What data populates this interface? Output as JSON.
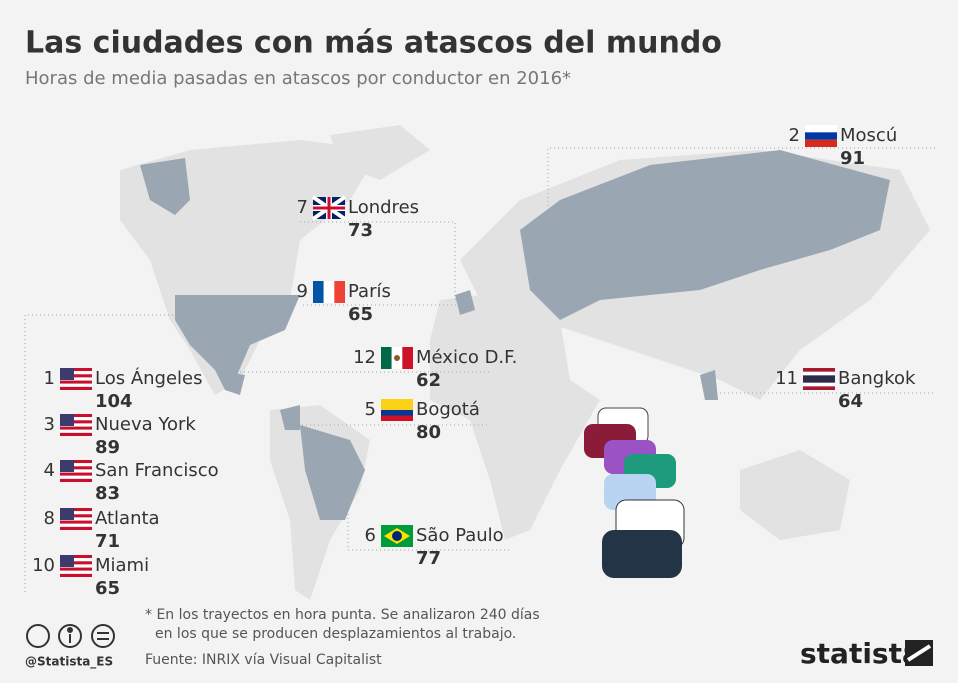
{
  "title": "Las ciudades con más atascos del mundo",
  "subtitle": "Horas de media pasadas en atascos por conductor en 2016*",
  "cities": [
    {
      "rank": 1,
      "name": "Los Ángeles",
      "hours": 104
    },
    {
      "rank": 2,
      "name": "Moscú",
      "hours": 91
    },
    {
      "rank": 3,
      "name": "Nueva York",
      "hours": 89
    },
    {
      "rank": 4,
      "name": "San Francisco",
      "hours": 83
    },
    {
      "rank": 5,
      "name": "Bogotá",
      "hours": 80
    },
    {
      "rank": 6,
      "name": "São Paulo",
      "hours": 77
    },
    {
      "rank": 7,
      "name": "Londres",
      "hours": 73
    },
    {
      "rank": 8,
      "name": "Atlanta",
      "hours": 71
    },
    {
      "rank": 9,
      "name": "París",
      "hours": 65
    },
    {
      "rank": 10,
      "name": "Miami",
      "hours": 65
    },
    {
      "rank": 11,
      "name": "Bangkok",
      "hours": 64
    },
    {
      "rank": 12,
      "name": "México D.F.",
      "hours": 62
    }
  ],
  "footnote": [
    "* En los trayectos en hora punta. Se analizaron 240 días",
    "en los que se producen desplazamientos al trabajo."
  ],
  "source": "Fuente: INRIX vía Visual Capitalist",
  "handle": "@Statista_ES",
  "brand": "statista"
}
